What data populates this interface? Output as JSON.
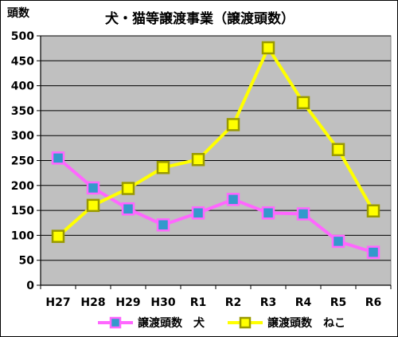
{
  "chart_data": {
    "type": "line",
    "title": "犬・猫等譲渡事業（譲渡頭数）",
    "ylabel": "頭数",
    "xlabel": "",
    "categories": [
      "H27",
      "H28",
      "H29",
      "H30",
      "R1",
      "R2",
      "R3",
      "R4",
      "R5",
      "R6"
    ],
    "ylim": [
      0,
      500
    ],
    "yticks": [
      0,
      50,
      100,
      150,
      200,
      250,
      300,
      350,
      400,
      450,
      500
    ],
    "grid": true,
    "legend_position": "bottom",
    "series": [
      {
        "name": "譲渡頭数　犬",
        "values": [
          255,
          195,
          153,
          121,
          145,
          172,
          145,
          143,
          88,
          66
        ],
        "line_color": "#ff66ff",
        "marker_fill": "#3399cc",
        "marker_stroke": "#ff66ff"
      },
      {
        "name": "譲渡頭数　ねこ",
        "values": [
          98,
          160,
          194,
          236,
          252,
          322,
          476,
          366,
          272,
          149
        ],
        "line_color": "#ffff00",
        "marker_fill": "#ffff00",
        "marker_stroke": "#999900"
      }
    ],
    "plot_background": "#c0c0c0",
    "grid_color": "#000000"
  }
}
